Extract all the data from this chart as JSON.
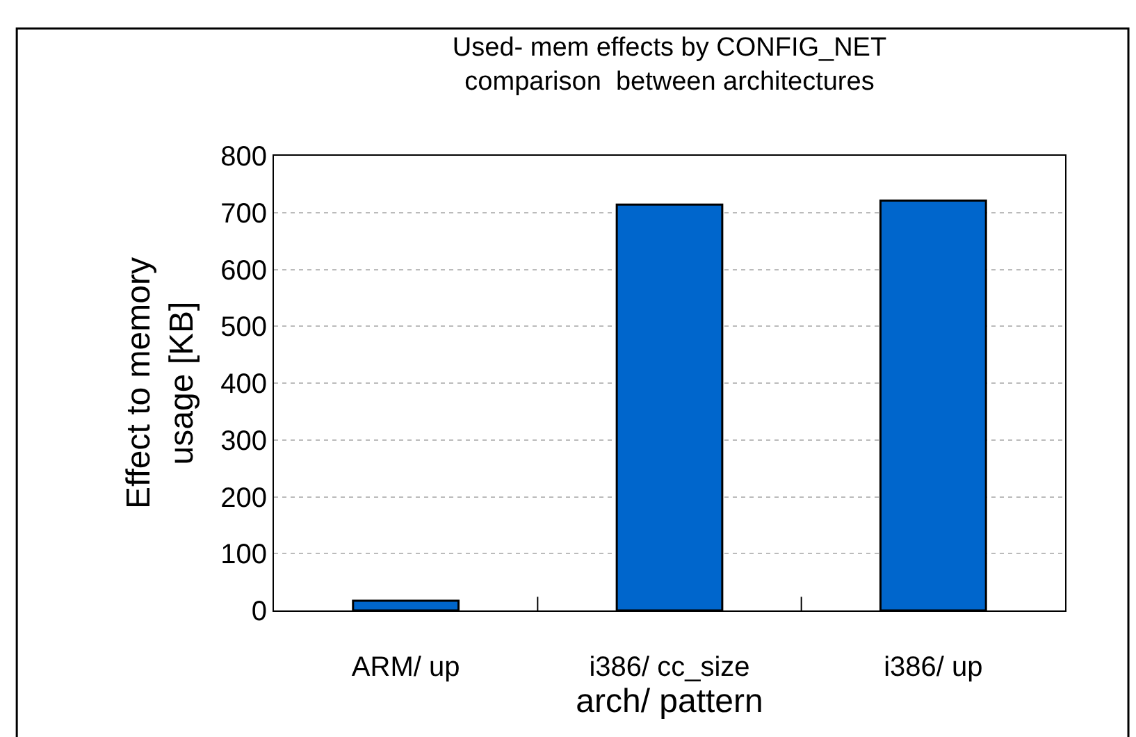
{
  "chart_data": {
    "type": "bar",
    "title": "Used- mem effects by CONFIG_NET\ncomparison  between architectures",
    "xlabel": "arch/ pattern",
    "ylabel": "Effect to memory\nusage [KB]",
    "categories": [
      "ARM/ up",
      "i386/ cc_size",
      "i386/ up"
    ],
    "values": [
      17,
      714,
      721
    ],
    "color": "#0066cc",
    "ylim": [
      0,
      800
    ],
    "yticks": [
      0,
      100,
      200,
      300,
      400,
      500,
      600,
      700,
      800
    ],
    "grid": "y"
  }
}
